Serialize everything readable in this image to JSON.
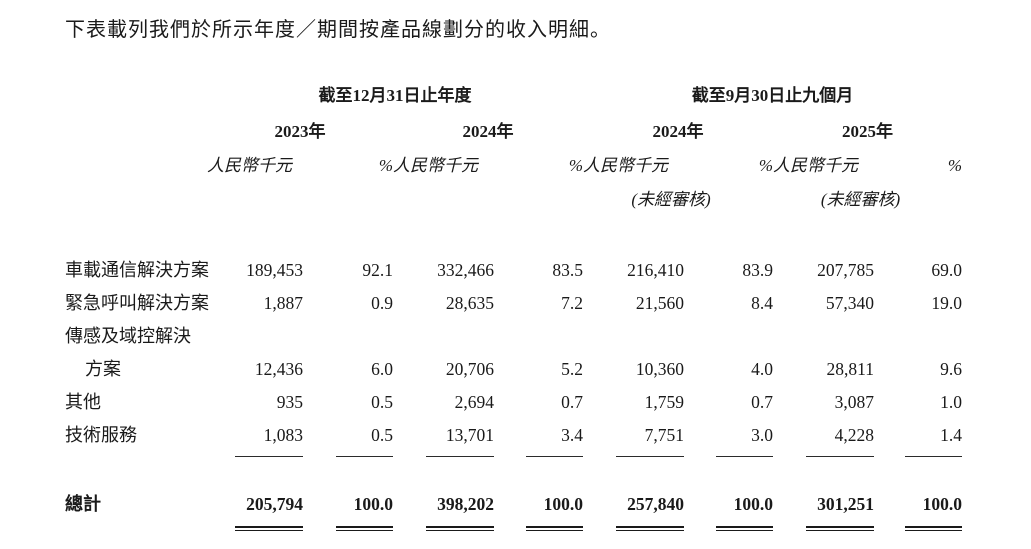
{
  "title": "下表載列我們於所示年度／期間按產品線劃分的收入明細。",
  "table": {
    "col_groups": [
      {
        "label": "截至12月31日止年度",
        "years": [
          "2023年",
          "2024年"
        ]
      },
      {
        "label": "截至9月30日止九個月",
        "years": [
          "2024年",
          "2025年"
        ]
      }
    ],
    "unit_label": "人民幣千元",
    "pct_label": "%",
    "unaudited_label": "(未經審核)",
    "rows": [
      [
        "車載通信解決方案",
        "189,453",
        "92.1",
        "332,466",
        "83.5",
        "216,410",
        "83.9",
        "207,785",
        "69.0"
      ],
      [
        "緊急呼叫解決方案",
        "1,887",
        "0.9",
        "28,635",
        "7.2",
        "21,560",
        "8.4",
        "57,340",
        "19.0"
      ],
      [
        "傳感及域控解決",
        "",
        "",
        "",
        "",
        "",
        "",
        "",
        ""
      ],
      [
        "方案",
        "12,436",
        "6.0",
        "20,706",
        "5.2",
        "10,360",
        "4.0",
        "28,811",
        "9.6"
      ],
      [
        "其他",
        "935",
        "0.5",
        "2,694",
        "0.7",
        "1,759",
        "0.7",
        "3,087",
        "1.0"
      ],
      [
        "技術服務",
        "1,083",
        "0.5",
        "13,701",
        "3.4",
        "7,751",
        "3.0",
        "4,228",
        "1.4"
      ]
    ],
    "total": [
      "總計",
      "205,794",
      "100.0",
      "398,202",
      "100.0",
      "257,840",
      "100.0",
      "301,251",
      "100.0"
    ]
  }
}
